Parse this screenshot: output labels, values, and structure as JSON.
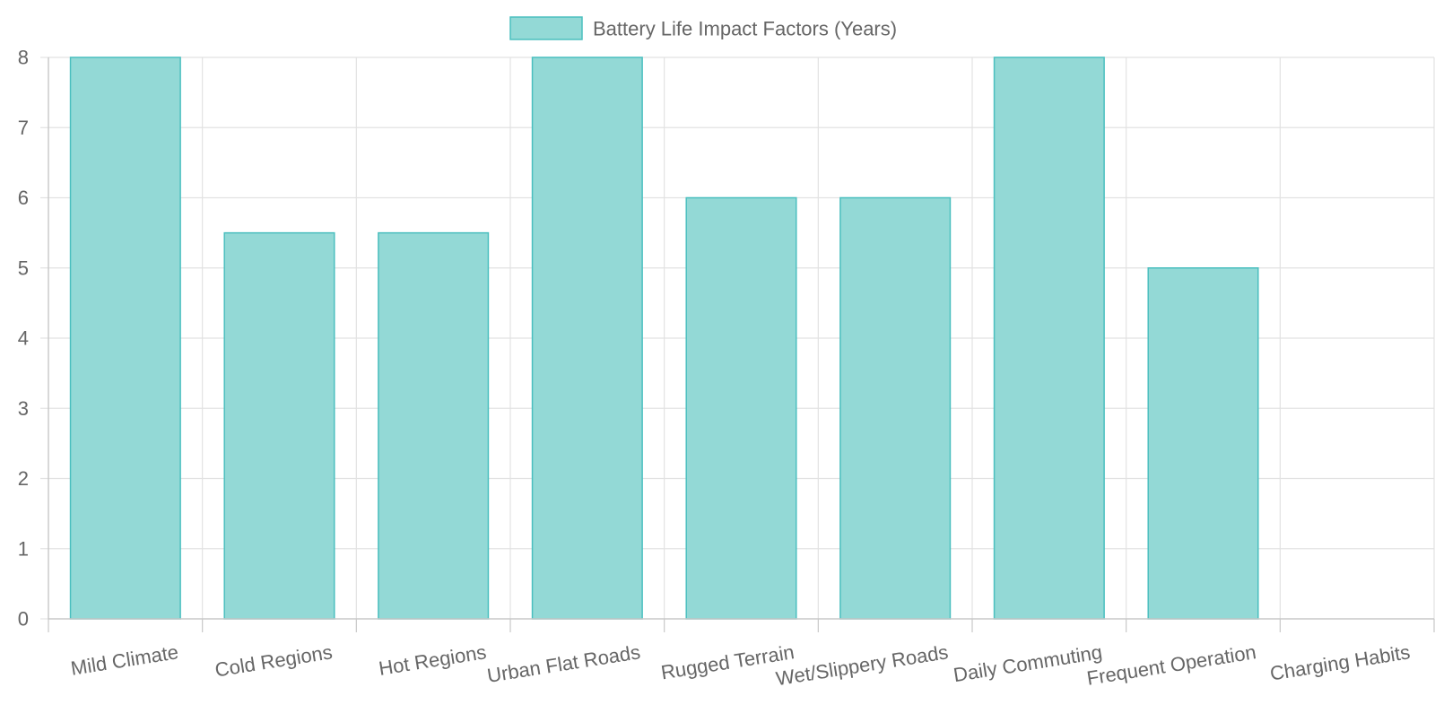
{
  "chart_data": {
    "type": "bar",
    "categories": [
      "Mild Climate",
      "Cold Regions",
      "Hot Regions",
      "Urban Flat Roads",
      "Rugged Terrain",
      "Wet/Slippery Roads",
      "Daily Commuting",
      "Frequent Operation",
      "Charging Habits"
    ],
    "series": [
      {
        "name": "Battery Life Impact Factors (Years)",
        "values": [
          8,
          5.5,
          5.5,
          8,
          6,
          6,
          8,
          5,
          0
        ]
      }
    ],
    "title": "",
    "xlabel": "",
    "ylabel": "",
    "ylim": [
      0,
      8
    ],
    "yticks": [
      "0",
      "1",
      "2",
      "3",
      "4",
      "5",
      "6",
      "7",
      "8"
    ],
    "grid": true,
    "legend_position": "top-center",
    "colors": {
      "bar_fill": "#93d9d6",
      "bar_stroke": "#4bbfbf",
      "grid": "#e2e2e2",
      "axis": "#c8c8c8",
      "text": "#666666"
    }
  }
}
